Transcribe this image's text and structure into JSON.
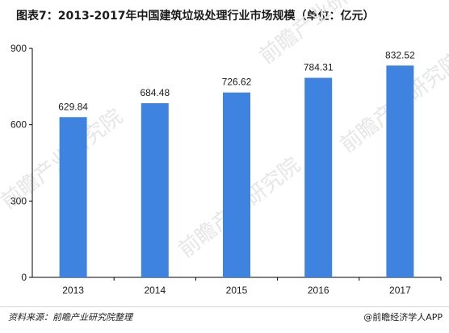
{
  "title": "图表7：2013-2017年中国建筑垃圾处理行业市场规模（单位：亿元）",
  "source": "资料来源：前瞻产业研究院整理",
  "brand": "@前瞻经济学人APP",
  "watermark": "前瞻产业研究院",
  "colors": {
    "bar": "#3f83e0",
    "axis": "#000000",
    "text": "#1a1a1a"
  },
  "chart_data": {
    "type": "bar",
    "title": "图表7：2013-2017年中国建筑垃圾处理行业市场规模（单位：亿元）",
    "xlabel": "",
    "ylabel": "",
    "categories": [
      "2013",
      "2014",
      "2015",
      "2016",
      "2017"
    ],
    "values": [
      629.84,
      684.48,
      726.62,
      784.31,
      832.52
    ],
    "value_labels": [
      "629.84",
      "684.48",
      "726.62",
      "784.31",
      "832.52"
    ],
    "ylim": [
      0,
      900
    ],
    "yticks": [
      0,
      300,
      600,
      900
    ],
    "ytick_labels": [
      "0",
      "300",
      "600",
      "900"
    ],
    "grid": false,
    "legend": "none"
  }
}
